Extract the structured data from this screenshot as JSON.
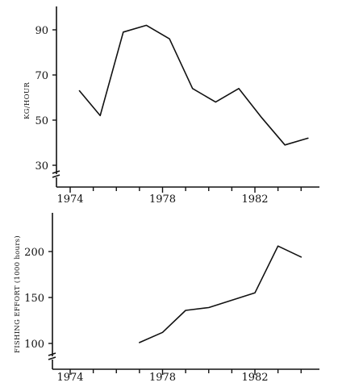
{
  "chart_data": [
    {
      "type": "line",
      "ylabel": "KG/HOUR",
      "xlabel": "",
      "xlim": [
        1973.2,
        1985.0
      ],
      "ylim": [
        22,
        100
      ],
      "x_ticks": [
        1974,
        1978,
        1982
      ],
      "x_tick_labels": [
        "1974",
        "1978",
        "1982"
      ],
      "y_ticks": [
        30,
        50,
        70,
        90
      ],
      "y_tick_labels": [
        "30",
        "50",
        "70",
        "90"
      ],
      "axis_break": true,
      "grid": false,
      "x": [
        1974.4,
        1975.3,
        1976.3,
        1977.3,
        1978.3,
        1979.3,
        1980.3,
        1981.3,
        1982.3,
        1983.3,
        1984.3
      ],
      "values": [
        63,
        52,
        89,
        92,
        86,
        64,
        58,
        64,
        51,
        39,
        42
      ]
    },
    {
      "type": "line",
      "ylabel": "FISHING EFFORT (1000 hours)",
      "xlabel": "",
      "xlim": [
        1973.2,
        1985.0
      ],
      "ylim": [
        80,
        240
      ],
      "x_ticks": [
        1974,
        1978,
        1982
      ],
      "x_tick_labels": [
        "1974",
        "1978",
        "1982"
      ],
      "y_ticks": [
        100,
        150,
        200
      ],
      "y_tick_labels": [
        "100",
        "150",
        "200"
      ],
      "axis_break": true,
      "grid": false,
      "x": [
        1977.0,
        1978.0,
        1979.0,
        1980.0,
        1981.0,
        1982.0,
        1983.0,
        1984.0
      ],
      "values": [
        101,
        112,
        136,
        139,
        147,
        155,
        206,
        194
      ]
    }
  ]
}
